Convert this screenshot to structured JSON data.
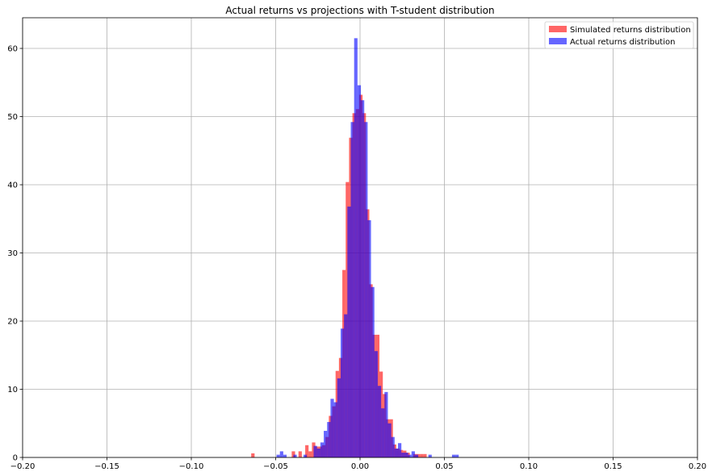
{
  "chart_data": {
    "type": "bar",
    "title": "Actual returns vs projections with T-student distribution",
    "xlabel": "",
    "ylabel": "",
    "xlim": [
      -0.2,
      0.2
    ],
    "ylim": [
      0,
      64.5
    ],
    "grid": true,
    "legend_position": "top-right",
    "x_ticks": [
      {
        "value": -0.2,
        "label": "−0.20"
      },
      {
        "value": -0.15,
        "label": "−0.15"
      },
      {
        "value": -0.1,
        "label": "−0.10"
      },
      {
        "value": -0.05,
        "label": "−0.05"
      },
      {
        "value": 0.0,
        "label": "0.00"
      },
      {
        "value": 0.05,
        "label": "0.05"
      },
      {
        "value": 0.1,
        "label": "0.10"
      },
      {
        "value": 0.15,
        "label": "0.15"
      },
      {
        "value": 0.2,
        "label": "0.20"
      }
    ],
    "y_ticks": [
      {
        "value": 0,
        "label": "0"
      },
      {
        "value": 10,
        "label": "10"
      },
      {
        "value": 20,
        "label": "20"
      },
      {
        "value": 30,
        "label": "30"
      },
      {
        "value": 40,
        "label": "40"
      },
      {
        "value": 50,
        "label": "50"
      },
      {
        "value": 60,
        "label": "60"
      }
    ],
    "series": [
      {
        "name": "Simulated returns distribution",
        "color": "#ff0000",
        "opacity": 0.6,
        "bins": [
          {
            "x0": -0.0645,
            "x1": -0.0625,
            "h": 0.6
          },
          {
            "x0": -0.0405,
            "x1": -0.0385,
            "h": 0.9
          },
          {
            "x0": -0.0365,
            "x1": -0.0345,
            "h": 0.9
          },
          {
            "x0": -0.0325,
            "x1": -0.0305,
            "h": 1.8
          },
          {
            "x0": -0.0305,
            "x1": -0.0285,
            "h": 0.9
          },
          {
            "x0": -0.0285,
            "x1": -0.0265,
            "h": 2.2
          },
          {
            "x0": -0.0265,
            "x1": -0.0245,
            "h": 1.6
          },
          {
            "x0": -0.0245,
            "x1": -0.0225,
            "h": 1.6
          },
          {
            "x0": -0.0225,
            "x1": -0.0205,
            "h": 1.8
          },
          {
            "x0": -0.0205,
            "x1": -0.0185,
            "h": 3.0
          },
          {
            "x0": -0.0185,
            "x1": -0.0165,
            "h": 6.1
          },
          {
            "x0": -0.0165,
            "x1": -0.0145,
            "h": 7.5
          },
          {
            "x0": -0.0145,
            "x1": -0.0125,
            "h": 12.7
          },
          {
            "x0": -0.0125,
            "x1": -0.0105,
            "h": 14.6
          },
          {
            "x0": -0.0105,
            "x1": -0.0085,
            "h": 27.5
          },
          {
            "x0": -0.0085,
            "x1": -0.0065,
            "h": 40.4
          },
          {
            "x0": -0.0065,
            "x1": -0.0045,
            "h": 46.9
          },
          {
            "x0": -0.0045,
            "x1": -0.0025,
            "h": 50.5
          },
          {
            "x0": -0.0025,
            "x1": -0.0005,
            "h": 51.1
          },
          {
            "x0": -0.0005,
            "x1": 0.0015,
            "h": 53.2
          },
          {
            "x0": 0.0015,
            "x1": 0.0035,
            "h": 50.5
          },
          {
            "x0": 0.0035,
            "x1": 0.0055,
            "h": 36.4
          },
          {
            "x0": 0.0055,
            "x1": 0.0075,
            "h": 25.4
          },
          {
            "x0": 0.0075,
            "x1": 0.0095,
            "h": 18.0
          },
          {
            "x0": 0.0095,
            "x1": 0.0115,
            "h": 18.0
          },
          {
            "x0": 0.0115,
            "x1": 0.0135,
            "h": 12.6
          },
          {
            "x0": 0.0135,
            "x1": 0.0155,
            "h": 9.3
          },
          {
            "x0": 0.0155,
            "x1": 0.0175,
            "h": 5.6
          },
          {
            "x0": 0.0175,
            "x1": 0.0195,
            "h": 5.6
          },
          {
            "x0": 0.0195,
            "x1": 0.0215,
            "h": 1.9
          },
          {
            "x0": 0.0215,
            "x1": 0.0235,
            "h": 1.3
          },
          {
            "x0": 0.0235,
            "x1": 0.0255,
            "h": 1.1
          },
          {
            "x0": 0.0255,
            "x1": 0.0275,
            "h": 1.0
          },
          {
            "x0": 0.0275,
            "x1": 0.0295,
            "h": 0.7
          },
          {
            "x0": 0.0315,
            "x1": 0.0335,
            "h": 0.5
          },
          {
            "x0": 0.0335,
            "x1": 0.0355,
            "h": 0.5
          },
          {
            "x0": 0.0355,
            "x1": 0.0375,
            "h": 0.5
          },
          {
            "x0": 0.0375,
            "x1": 0.0395,
            "h": 0.5
          }
        ]
      },
      {
        "name": "Actual returns distribution",
        "color": "#0000ff",
        "opacity": 0.6,
        "bins": [
          {
            "x0": -0.0495,
            "x1": -0.0475,
            "h": 0.4
          },
          {
            "x0": -0.0475,
            "x1": -0.0455,
            "h": 0.9
          },
          {
            "x0": -0.0455,
            "x1": -0.0435,
            "h": 0.4
          },
          {
            "x0": -0.0395,
            "x1": -0.0375,
            "h": 0.4
          },
          {
            "x0": -0.0335,
            "x1": -0.0315,
            "h": 0.4
          },
          {
            "x0": -0.0275,
            "x1": -0.0255,
            "h": 1.7
          },
          {
            "x0": -0.0255,
            "x1": -0.0235,
            "h": 1.3
          },
          {
            "x0": -0.0235,
            "x1": -0.0215,
            "h": 2.2
          },
          {
            "x0": -0.0215,
            "x1": -0.0195,
            "h": 3.9
          },
          {
            "x0": -0.0195,
            "x1": -0.0175,
            "h": 5.2
          },
          {
            "x0": -0.0175,
            "x1": -0.0155,
            "h": 8.6
          },
          {
            "x0": -0.0155,
            "x1": -0.0135,
            "h": 8.1
          },
          {
            "x0": -0.0135,
            "x1": -0.0115,
            "h": 11.6
          },
          {
            "x0": -0.0115,
            "x1": -0.0095,
            "h": 18.9
          },
          {
            "x0": -0.0095,
            "x1": -0.0075,
            "h": 21.0
          },
          {
            "x0": -0.0075,
            "x1": -0.0055,
            "h": 36.8
          },
          {
            "x0": -0.0055,
            "x1": -0.0035,
            "h": 49.2
          },
          {
            "x0": -0.0035,
            "x1": -0.0015,
            "h": 61.5
          },
          {
            "x0": -0.0015,
            "x1": 0.0005,
            "h": 54.6
          },
          {
            "x0": 0.0005,
            "x1": 0.0025,
            "h": 52.4
          },
          {
            "x0": 0.0025,
            "x1": 0.0045,
            "h": 49.2
          },
          {
            "x0": 0.0045,
            "x1": 0.0065,
            "h": 34.8
          },
          {
            "x0": 0.0065,
            "x1": 0.0085,
            "h": 25.0
          },
          {
            "x0": 0.0085,
            "x1": 0.0105,
            "h": 15.6
          },
          {
            "x0": 0.0105,
            "x1": 0.0125,
            "h": 10.5
          },
          {
            "x0": 0.0125,
            "x1": 0.0145,
            "h": 7.2
          },
          {
            "x0": 0.0145,
            "x1": 0.0165,
            "h": 9.6
          },
          {
            "x0": 0.0165,
            "x1": 0.0185,
            "h": 5.0
          },
          {
            "x0": 0.0185,
            "x1": 0.0205,
            "h": 3.0
          },
          {
            "x0": 0.0205,
            "x1": 0.0225,
            "h": 1.3
          },
          {
            "x0": 0.0225,
            "x1": 0.0245,
            "h": 2.1
          },
          {
            "x0": 0.0245,
            "x1": 0.0265,
            "h": 0.7
          },
          {
            "x0": 0.0265,
            "x1": 0.0285,
            "h": 0.7
          },
          {
            "x0": 0.0285,
            "x1": 0.0305,
            "h": 0.4
          },
          {
            "x0": 0.0305,
            "x1": 0.0325,
            "h": 0.9
          },
          {
            "x0": 0.0325,
            "x1": 0.0345,
            "h": 0.4
          },
          {
            "x0": 0.0405,
            "x1": 0.0425,
            "h": 0.4
          },
          {
            "x0": 0.0545,
            "x1": 0.0565,
            "h": 0.4
          },
          {
            "x0": 0.0565,
            "x1": 0.0585,
            "h": 0.4
          }
        ]
      }
    ]
  }
}
